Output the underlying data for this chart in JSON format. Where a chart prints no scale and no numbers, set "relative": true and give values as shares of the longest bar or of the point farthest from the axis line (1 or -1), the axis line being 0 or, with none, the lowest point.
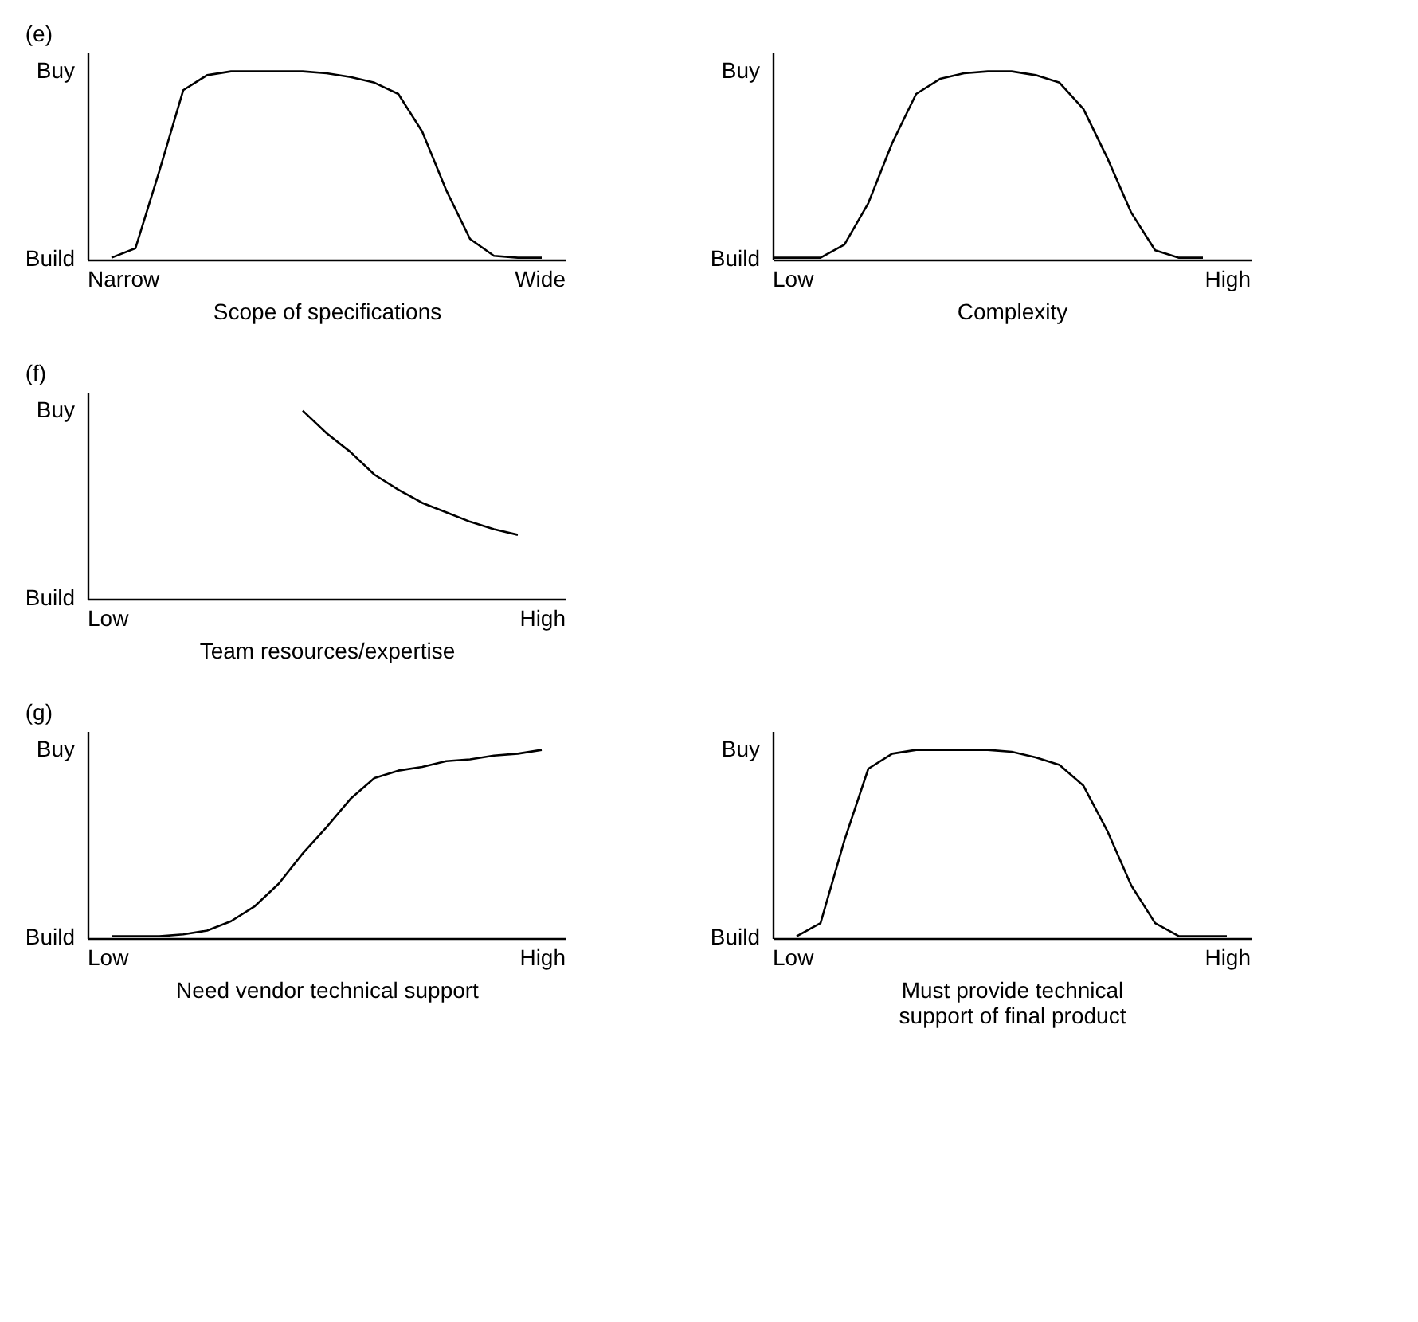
{
  "chart_data": [
    {
      "type": "line",
      "relative": true,
      "title": "(e)",
      "xlabel": "Scope of specifications",
      "color": "#000000",
      "line_style": "solid",
      "annotations": [
        "Build",
        "Buy",
        "Narrow",
        "Wide"
      ],
      "categories": [
        null,
        null,
        null,
        null,
        null,
        null,
        null,
        null,
        null,
        null,
        null,
        null,
        null,
        null,
        null,
        null,
        null,
        null,
        null,
        null,
        null
      ],
      "values": [
        null,
        0.01,
        0.06,
        0.47,
        0.9,
        0.98,
        1.0,
        1.0,
        1.0,
        1.0,
        0.99,
        0.97,
        0.94,
        0.88,
        0.68,
        0.37,
        0.11,
        0.02,
        0.01,
        0.01,
        null
      ]
    },
    {
      "type": "line",
      "relative": true,
      "xlabel": "Complexity",
      "color": "#000000",
      "line_style": "solid",
      "annotations": [
        "Build",
        "Buy",
        "Low",
        "High"
      ],
      "categories": [
        null,
        null,
        null,
        null,
        null,
        null,
        null,
        null,
        null,
        null,
        null,
        null,
        null,
        null,
        null,
        null,
        null,
        null,
        null,
        null,
        null
      ],
      "values": [
        0.01,
        0.01,
        0.01,
        0.08,
        0.3,
        0.62,
        0.88,
        0.96,
        0.99,
        1.0,
        1.0,
        0.98,
        0.94,
        0.8,
        0.54,
        0.25,
        0.05,
        0.01,
        0.01,
        null,
        null
      ]
    },
    {
      "type": "line",
      "relative": true,
      "title": "(f)",
      "xlabel": "Team resources/expertise",
      "color": "#000000",
      "line_style": "solid",
      "annotations": [
        "Build",
        "Buy",
        "Low",
        "High"
      ],
      "categories": [
        null,
        null,
        null,
        null,
        null,
        null,
        null,
        null,
        null,
        null,
        null,
        null,
        null,
        null,
        null,
        null,
        null,
        null,
        null,
        null,
        null
      ],
      "values": [
        null,
        null,
        null,
        null,
        null,
        null,
        null,
        null,
        null,
        1.0,
        0.88,
        0.78,
        0.66,
        0.58,
        0.51,
        0.46,
        0.41,
        0.37,
        0.34,
        null,
        null
      ]
    },
    {
      "type": "line",
      "relative": true,
      "title": "(g)",
      "xlabel": "Need vendor technical support",
      "color": "#000000",
      "line_style": "solid",
      "annotations": [
        "Build",
        "Buy",
        "Low",
        "High"
      ],
      "categories": [
        null,
        null,
        null,
        null,
        null,
        null,
        null,
        null,
        null,
        null,
        null,
        null,
        null,
        null,
        null,
        null,
        null,
        null,
        null,
        null,
        null
      ],
      "values": [
        null,
        0.01,
        0.01,
        0.01,
        0.02,
        0.04,
        0.09,
        0.17,
        0.29,
        0.45,
        0.59,
        0.74,
        0.85,
        0.89,
        0.91,
        0.94,
        0.95,
        0.97,
        0.98,
        1.0,
        null
      ]
    },
    {
      "type": "line",
      "relative": true,
      "xlabel": "Must provide technical support of final product",
      "color": "#000000",
      "line_style": "solid",
      "annotations": [
        "Build",
        "Buy",
        "Low",
        "High"
      ],
      "categories": [
        null,
        null,
        null,
        null,
        null,
        null,
        null,
        null,
        null,
        null,
        null,
        null,
        null,
        null,
        null,
        null,
        null,
        null,
        null,
        null,
        null
      ],
      "values": [
        null,
        0.01,
        0.08,
        0.52,
        0.9,
        0.98,
        1.0,
        1.0,
        1.0,
        1.0,
        0.99,
        0.96,
        0.92,
        0.81,
        0.57,
        0.28,
        0.08,
        0.01,
        0.01,
        0.01,
        null
      ]
    }
  ]
}
